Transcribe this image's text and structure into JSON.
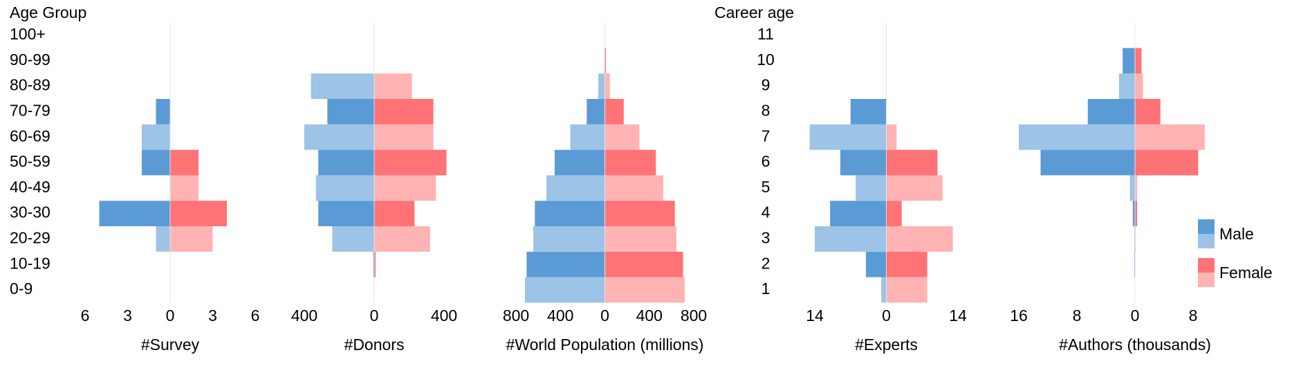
{
  "chart_data": {
    "type": "pyramid",
    "series": [
      {
        "name": "Male",
        "colors": [
          "#9dc3e6",
          "#5b9bd5"
        ]
      },
      {
        "name": "Female",
        "colors": [
          "#ffb3b3",
          "#ff7276"
        ]
      }
    ],
    "legend": "lower right",
    "groups": [
      {
        "y_label": "Age Group",
        "categories": [
          "0-9",
          "10-19",
          "20-29",
          "30-30",
          "40-49",
          "50-59",
          "60-69",
          "70-79",
          "80-89",
          "90-99",
          "100+"
        ],
        "panels": [
          {
            "x_label": "#Survey",
            "xlim": [
              -6,
              6
            ],
            "xticks": [
              {
                "value": -6,
                "label": "6"
              },
              {
                "value": -3,
                "label": "3"
              },
              0,
              3,
              6
            ],
            "values": [
              [
                0,
                0,
                1,
                5,
                0,
                2,
                2,
                1,
                0,
                0,
                0
              ],
              [
                0,
                0,
                3,
                4,
                2,
                2,
                0,
                0,
                0,
                0,
                0
              ]
            ]
          },
          {
            "x_label": "#Donors",
            "xlim": [
              -400,
              400
            ],
            "xticks": [
              {
                "value": -400,
                "label": "400"
              },
              0,
              400
            ],
            "values": [
              [
                0,
                5,
                240,
                320,
                334,
                320,
                400,
                268,
                362,
                2,
                0
              ],
              [
                0,
                8,
                320,
                231,
                353,
                414,
                339,
                339,
                216,
                2,
                0
              ]
            ]
          },
          {
            "x_label": "#World Population (millions)",
            "xlim": [
              -800,
              800
            ],
            "xticks": [
              {
                "value": -800,
                "label": "800"
              },
              {
                "value": -400,
                "label": "400"
              },
              0,
              400,
              800
            ],
            "values": [
              [
                719,
                704,
                644,
                630,
                526,
                452,
                311,
                163,
                59,
                5,
                0
              ],
              [
                719,
                704,
                644,
                630,
                526,
                459,
                311,
                170,
                45,
                10,
                0
              ]
            ]
          }
        ]
      },
      {
        "y_label": "Career age",
        "categories": [
          "1",
          "2",
          "3",
          "4",
          "5",
          "6",
          "7",
          "8",
          "9",
          "10",
          "11"
        ],
        "panels": [
          {
            "x_label": "#Experts",
            "xlim": [
              -14,
              14
            ],
            "xticks": [
              {
                "value": -14,
                "label": "14"
              },
              0,
              14
            ],
            "values": [
              [
                1,
                4,
                14,
                11,
                6,
                9,
                15,
                7,
                0,
                0,
                0
              ],
              [
                8,
                8,
                13,
                3,
                11,
                10,
                2,
                0,
                0,
                0,
                0
              ]
            ]
          },
          {
            "x_label": "#Authors (thousands)",
            "xlim": [
              -16,
              8
            ],
            "xticks": [
              {
                "value": -16,
                "label": "16"
              },
              {
                "value": -8,
                "label": "8"
              },
              0,
              8
            ],
            "values": [
              [
                0,
                0.1,
                0.1,
                0.3,
                0.7,
                13,
                16,
                6.5,
                2.2,
                1.7,
                0
              ],
              [
                0,
                0,
                0.1,
                0.3,
                0.3,
                8.7,
                9.6,
                3.5,
                1.1,
                0.9,
                0
              ]
            ]
          }
        ]
      }
    ]
  }
}
